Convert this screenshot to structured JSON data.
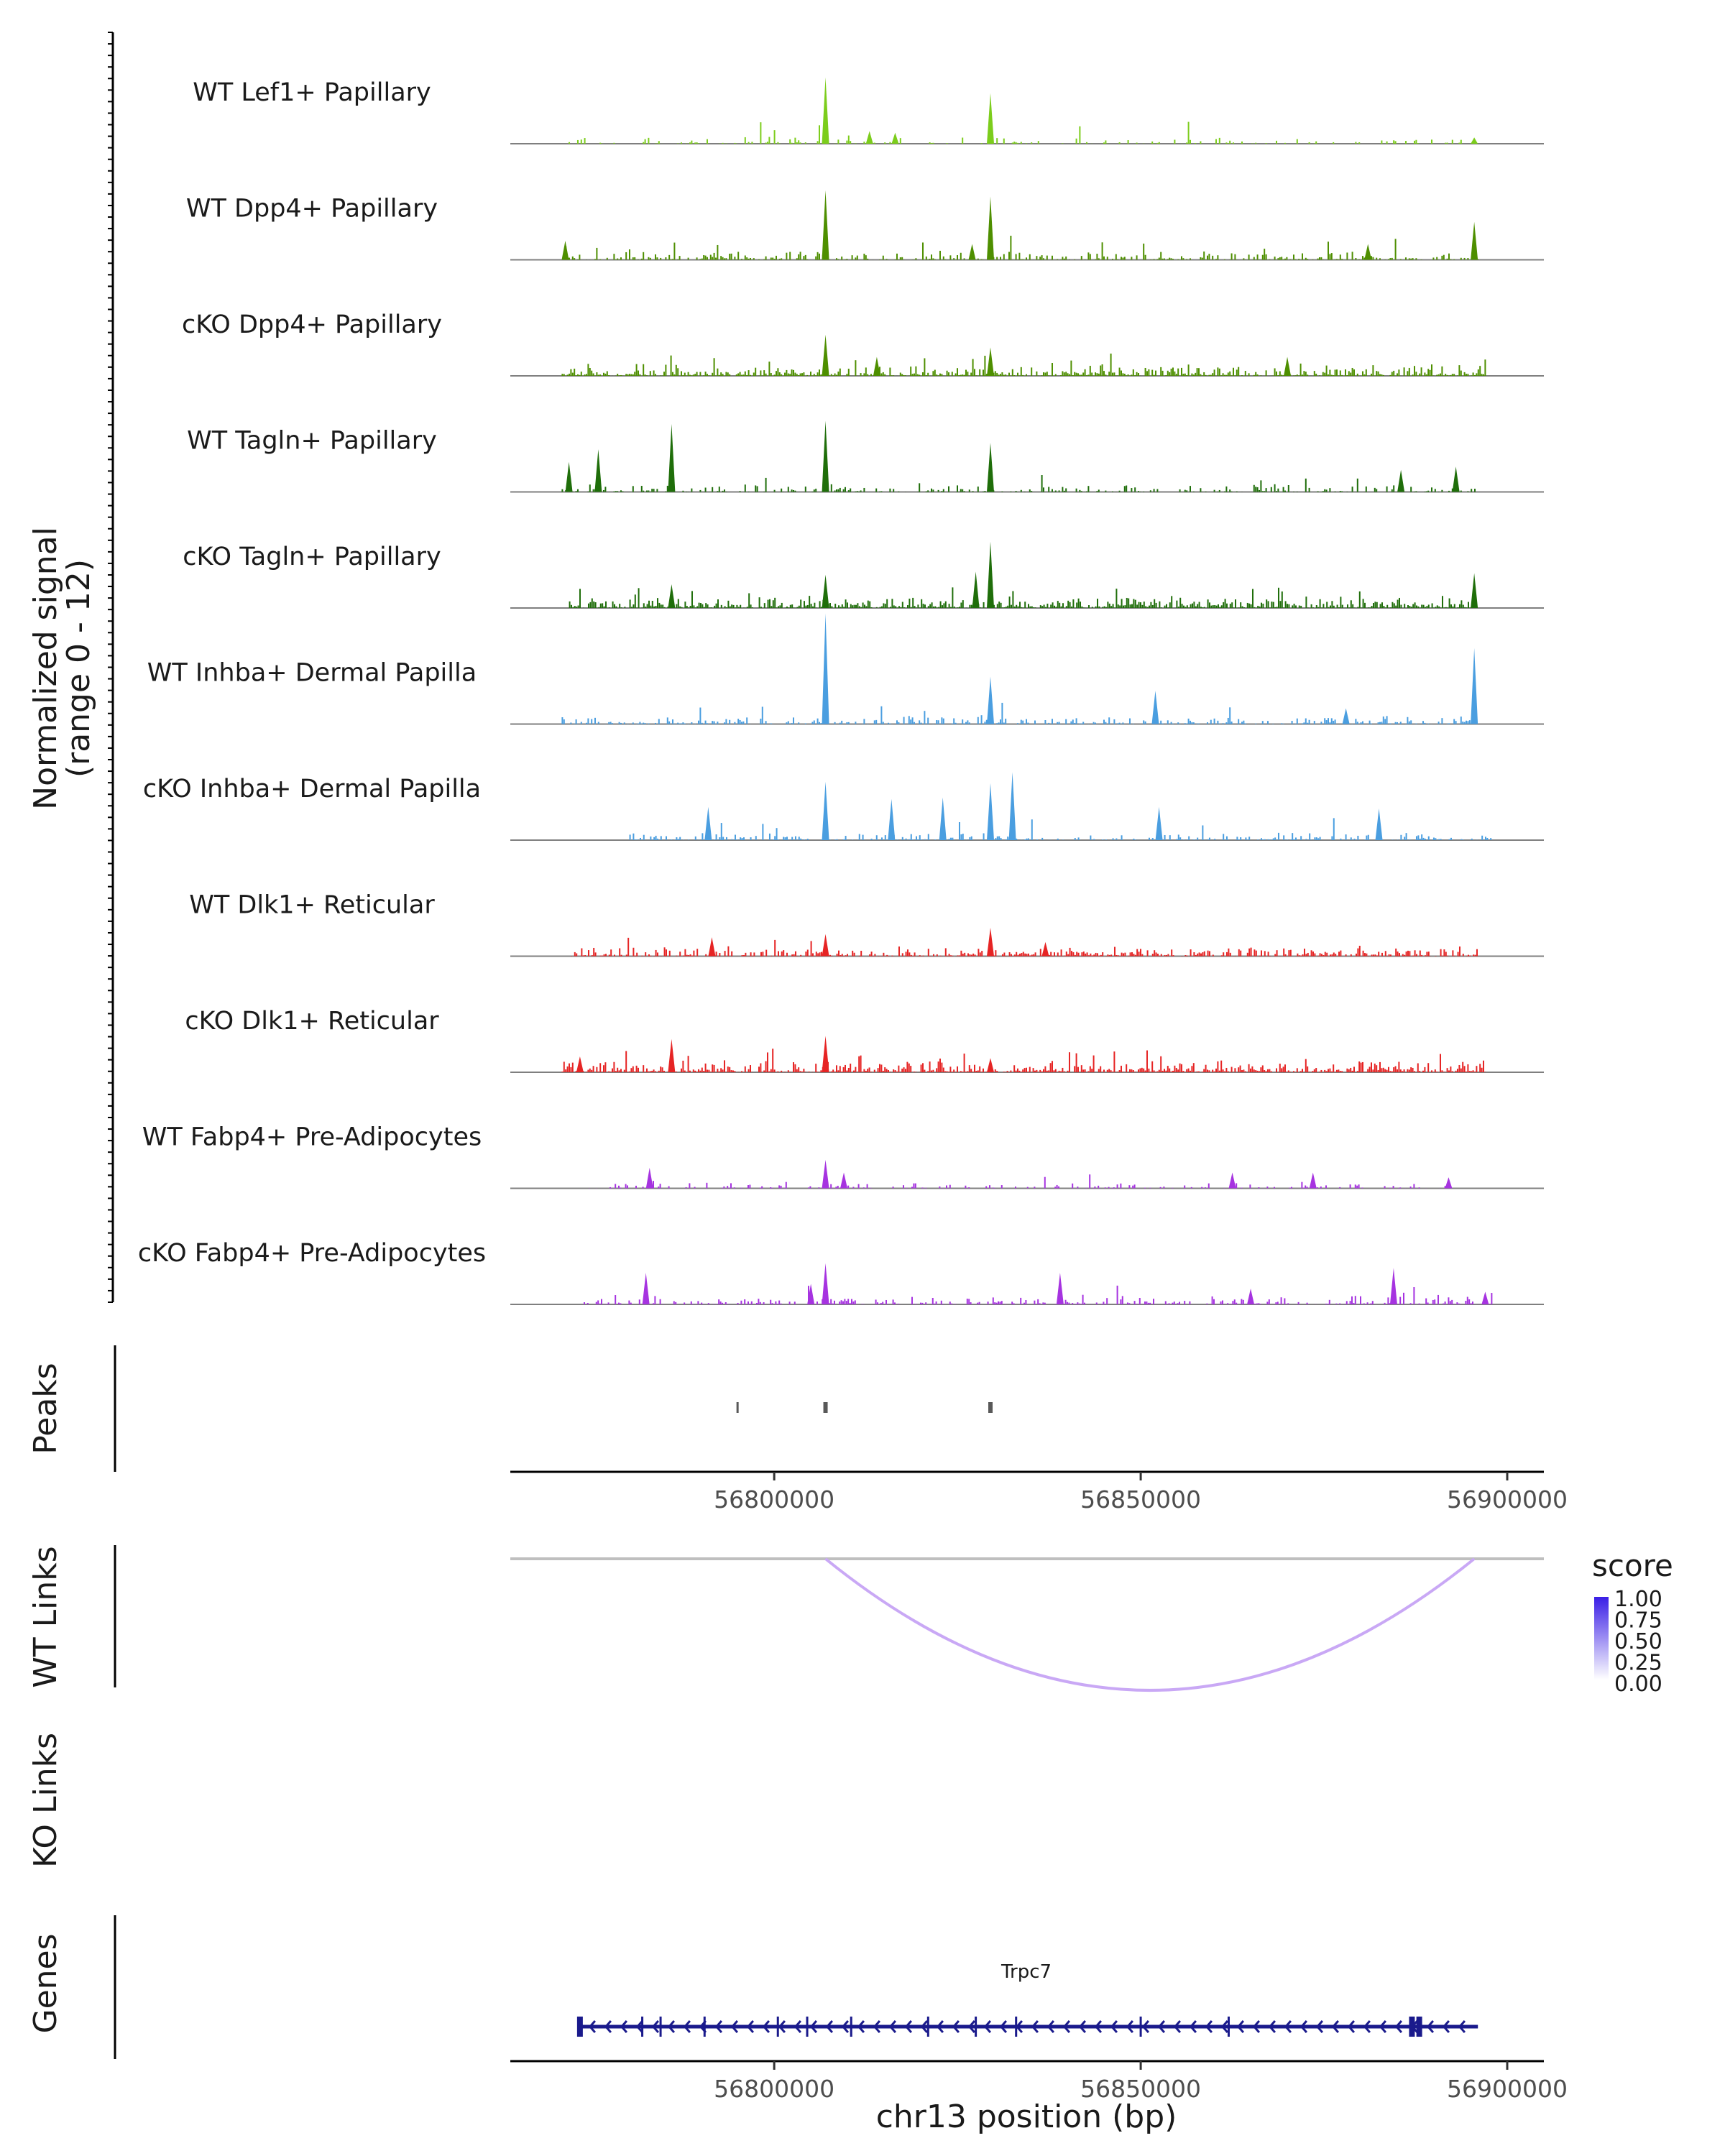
{
  "chart_data": {
    "type": "coverage-tracks",
    "xlabel": "chr13 position (bp)",
    "xlim": [
      56764000,
      56905000
    ],
    "xticks": [
      56800000,
      56850000,
      56900000
    ],
    "xtick_labels": [
      "56800000",
      "56850000",
      "56900000"
    ],
    "ylabel_line1": "Normalized signal",
    "ylabel_line2": "(range 0 - 12)",
    "yrange": [
      0,
      12
    ],
    "tracks": [
      {
        "name": "WT Lef1+ Papillary",
        "color": "#7CCD1C",
        "peaks": [
          [
            56807000,
            4.2
          ],
          [
            56829500,
            3.2
          ],
          [
            56813000,
            0.8
          ],
          [
            56816500,
            0.7
          ],
          [
            56895500,
            0.4
          ]
        ],
        "span": [
          56771000,
          56896000
        ],
        "density": 0.3
      },
      {
        "name": "WT Dpp4+ Papillary",
        "color": "#4E8F00",
        "peaks": [
          [
            56807000,
            4.4
          ],
          [
            56829500,
            4.0
          ],
          [
            56895500,
            2.4
          ],
          [
            56881000,
            1.0
          ],
          [
            56827000,
            1.0
          ],
          [
            56771500,
            1.2
          ]
        ],
        "span": [
          56771000,
          56896000
        ],
        "density": 0.55
      },
      {
        "name": "cKO Dpp4+ Papillary",
        "color": "#4E8F00",
        "peaks": [
          [
            56807000,
            2.6
          ],
          [
            56829500,
            1.8
          ],
          [
            56814000,
            1.2
          ],
          [
            56870000,
            1.2
          ]
        ],
        "span": [
          56771000,
          56897000
        ],
        "density": 0.85
      },
      {
        "name": "WT Tagln+ Papillary",
        "color": "#1F6E0A",
        "peaks": [
          [
            56807000,
            4.5
          ],
          [
            56786000,
            4.3
          ],
          [
            56829500,
            3.1
          ],
          [
            56776000,
            2.7
          ],
          [
            56893000,
            1.6
          ],
          [
            56885500,
            1.4
          ],
          [
            56772000,
            1.9
          ]
        ],
        "span": [
          56771000,
          56896000
        ],
        "density": 0.45
      },
      {
        "name": "cKO Tagln+ Papillary",
        "color": "#1F6E0A",
        "peaks": [
          [
            56829500,
            4.2
          ],
          [
            56807000,
            2.1
          ],
          [
            56827500,
            2.3
          ],
          [
            56895500,
            2.2
          ],
          [
            56786000,
            1.5
          ]
        ],
        "span": [
          56772000,
          56896000
        ],
        "density": 0.9
      },
      {
        "name": "WT Inhba+ Dermal Papilla",
        "color": "#4A9EE0",
        "peaks": [
          [
            56807000,
            7.0
          ],
          [
            56895500,
            4.8
          ],
          [
            56829500,
            3.0
          ],
          [
            56852000,
            2.1
          ],
          [
            56878000,
            1.0
          ]
        ],
        "span": [
          56771000,
          56896000
        ],
        "density": 0.55
      },
      {
        "name": "cKO Inhba+ Dermal Papilla",
        "color": "#4A9EE0",
        "peaks": [
          [
            56807000,
            3.7
          ],
          [
            56832500,
            4.3
          ],
          [
            56829500,
            3.6
          ],
          [
            56823000,
            2.7
          ],
          [
            56816000,
            2.6
          ],
          [
            56791000,
            2.1
          ],
          [
            56852500,
            2.1
          ],
          [
            56882500,
            2.0
          ]
        ],
        "span": [
          56780000,
          56898000
        ],
        "density": 0.5
      },
      {
        "name": "WT Dlk1+ Reticular",
        "color": "#E62424",
        "peaks": [
          [
            56829500,
            1.8
          ],
          [
            56807000,
            1.4
          ],
          [
            56791500,
            1.2
          ],
          [
            56837000,
            0.9
          ]
        ],
        "span": [
          56772000,
          56896000
        ],
        "density": 0.7
      },
      {
        "name": "cKO Dlk1+ Reticular",
        "color": "#E62424",
        "peaks": [
          [
            56807000,
            2.3
          ],
          [
            56786000,
            2.1
          ],
          [
            56773500,
            1.0
          ],
          [
            56829500,
            0.9
          ]
        ],
        "span": [
          56771000,
          56897000
        ],
        "density": 0.9
      },
      {
        "name": "WT Fabp4+ Pre-Adipocytes",
        "color": "#A633E0",
        "peaks": [
          [
            56807000,
            1.8
          ],
          [
            56783000,
            1.3
          ],
          [
            56809500,
            1.0
          ],
          [
            56862500,
            1.0
          ],
          [
            56873500,
            1.0
          ],
          [
            56892000,
            0.7
          ]
        ],
        "span": [
          56774000,
          56894000
        ],
        "density": 0.3
      },
      {
        "name": "cKO Fabp4+ Pre-Adipocytes",
        "color": "#A633E0",
        "peaks": [
          [
            56807000,
            2.6
          ],
          [
            56884500,
            2.3
          ],
          [
            56782500,
            2.0
          ],
          [
            56839000,
            2.0
          ],
          [
            56805000,
            1.3
          ],
          [
            56865000,
            1.0
          ],
          [
            56897000,
            0.8
          ]
        ],
        "span": [
          56774000,
          56898000
        ],
        "density": 0.55
      }
    ],
    "peaks_track": {
      "title": "Peaks",
      "peaks": [
        56795000,
        56807000,
        56829500
      ]
    },
    "links": {
      "wt_title": "WT Links",
      "ko_title": "KO Links",
      "wt": [
        {
          "start": 56807000,
          "end": 56895500,
          "score": 0.3
        }
      ],
      "ko": [],
      "legend_title": "score",
      "legend_labels": [
        "1.00",
        "0.75",
        "0.50",
        "0.25",
        "0.00"
      ]
    },
    "genes": {
      "title": "Genes",
      "items": [
        {
          "name": "Trpc7",
          "start": 56773500,
          "end": 56896000,
          "strand": "-",
          "exons": [
            56773500,
            56782000,
            56784500,
            56790500,
            56800500,
            56804500,
            56810500,
            56821000,
            56827500,
            56833000,
            56850000,
            56862000,
            56887000,
            56888000
          ]
        }
      ]
    }
  }
}
